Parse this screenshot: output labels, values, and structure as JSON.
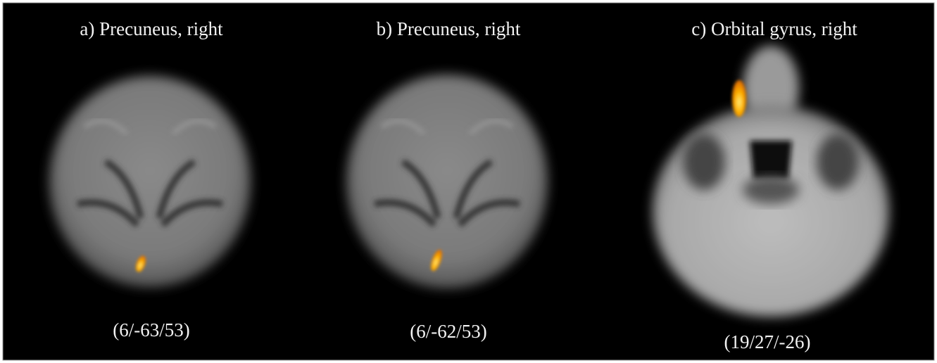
{
  "panels": [
    {
      "title": "a) Precuneus, right",
      "coordinates": "(6/-63/53)"
    },
    {
      "title": "b) Precuneus, right",
      "coordinates": "(6/-62/53)"
    },
    {
      "title": "c) Orbital gyrus, right",
      "coordinates": "(19/27/-26)"
    }
  ]
}
